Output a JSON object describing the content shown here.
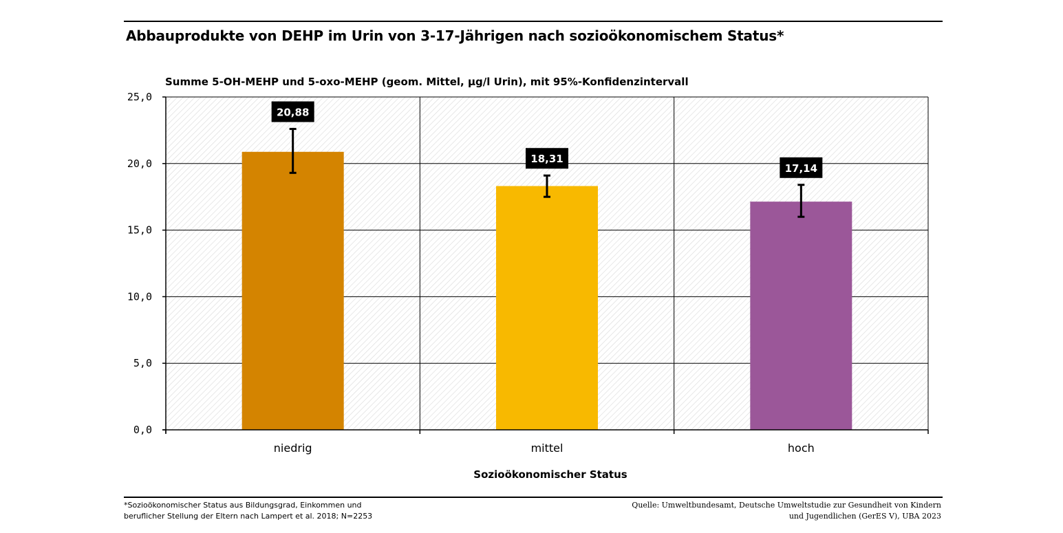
{
  "title": "Abbauprodukte von DEHP im Urin von 3-17-Jährigen nach sozioökonomischem Status*",
  "footnote": {
    "line1": "*Sozioökonomischer Status aus Bildungsgrad, Einkommen und",
    "line2": "beruflicher Stellung der Eltern nach Lampert et al. 2018; N=2253"
  },
  "source": {
    "line1": "Quelle: Umweltbundesamt, Deutsche Umweltstudie zur Gesundheit von Kindern",
    "line2": "und Jugendlichen (GerES V), UBA 2023"
  },
  "chart_data": {
    "type": "bar",
    "title": "Abbauprodukte von DEHP im Urin von 3-17-Jährigen nach sozioökonomischem Status*",
    "subtitle": "Summe 5-OH-MEHP und 5-oxo-MEHP (geom. Mittel, µg/l Urin), mit 95%-Konfidenzintervall",
    "xlabel": "Sozioökonomischer Status",
    "ylabel": "",
    "categories": [
      "niedrig",
      "mittel",
      "hoch"
    ],
    "values": [
      20.88,
      18.31,
      17.14
    ],
    "value_labels": [
      "20,88",
      "18,31",
      "17,14"
    ],
    "ci_lower": [
      19.3,
      17.5,
      16.0
    ],
    "ci_upper": [
      22.6,
      19.1,
      18.4
    ],
    "colors": [
      "#d48400",
      "#f8b900",
      "#9b5799"
    ],
    "ylim": [
      0,
      25
    ],
    "yticks": [
      0,
      5,
      10,
      15,
      20,
      25
    ],
    "ytick_labels": [
      "0,0",
      "5,0",
      "10,0",
      "15,0",
      "20,0",
      "25,0"
    ],
    "grid": true
  }
}
